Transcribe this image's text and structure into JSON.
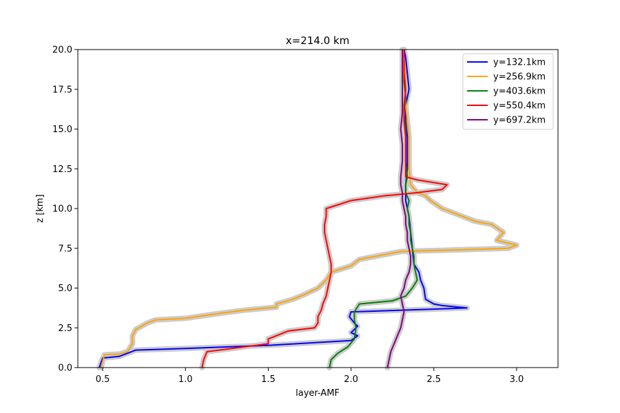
{
  "chart_data": {
    "type": "line",
    "title": "x=214.0 km",
    "xlabel": "layer-AMF",
    "ylabel": "z [km]",
    "xlim": [
      0.35,
      3.25
    ],
    "ylim": [
      0,
      20
    ],
    "xticks": [
      0.5,
      1.0,
      1.5,
      2.0,
      2.5,
      3.0
    ],
    "xtick_labels": [
      "0.5",
      "1.0",
      "1.5",
      "2.0",
      "2.5",
      "3.0"
    ],
    "yticks": [
      0,
      2.5,
      5,
      7.5,
      10,
      12.5,
      15,
      17.5,
      20
    ],
    "ytick_labels": [
      "0.0",
      "2.5",
      "5.0",
      "7.5",
      "10.0",
      "12.5",
      "15.0",
      "17.5",
      "20.0"
    ],
    "grid": false,
    "legend_position": "top-right",
    "uncertainty_band_color": "#cccccc",
    "series": [
      {
        "name": "y=132.1km",
        "color": "#0000ff",
        "points": [
          [
            0.48,
            0
          ],
          [
            0.49,
            0.3
          ],
          [
            0.5,
            0.6
          ],
          [
            0.6,
            0.7
          ],
          [
            0.65,
            0.9
          ],
          [
            0.7,
            1.1
          ],
          [
            1.0,
            1.2
          ],
          [
            1.5,
            1.4
          ],
          [
            2.0,
            1.7
          ],
          [
            2.04,
            2.0
          ],
          [
            2.0,
            2.2
          ],
          [
            2.04,
            2.6
          ],
          [
            2.02,
            2.8
          ],
          [
            1.99,
            3.2
          ],
          [
            2.0,
            3.5
          ],
          [
            2.7,
            3.75
          ],
          [
            2.55,
            3.9
          ],
          [
            2.5,
            4.0
          ],
          [
            2.45,
            4.3
          ],
          [
            2.44,
            5.0
          ],
          [
            2.42,
            5.5
          ],
          [
            2.41,
            6.0
          ],
          [
            2.38,
            6.5
          ],
          [
            2.37,
            7.5
          ],
          [
            2.36,
            8.5
          ],
          [
            2.35,
            9.5
          ],
          [
            2.33,
            10.5
          ],
          [
            2.33,
            11.5
          ],
          [
            2.34,
            12.5
          ],
          [
            2.34,
            13.5
          ],
          [
            2.34,
            14.5
          ],
          [
            2.33,
            15.5
          ],
          [
            2.33,
            16.5
          ],
          [
            2.35,
            17.5
          ],
          [
            2.34,
            18.5
          ],
          [
            2.33,
            19.5
          ],
          [
            2.32,
            20
          ]
        ]
      },
      {
        "name": "y=256.9km",
        "color": "#ffa500",
        "points": [
          [
            0.49,
            0
          ],
          [
            0.5,
            0.4
          ],
          [
            0.51,
            0.8
          ],
          [
            0.6,
            0.85
          ],
          [
            0.65,
            1.0
          ],
          [
            0.68,
            1.5
          ],
          [
            0.68,
            2.0
          ],
          [
            0.7,
            2.4
          ],
          [
            0.77,
            2.8
          ],
          [
            0.82,
            3.0
          ],
          [
            1.0,
            3.1
          ],
          [
            1.2,
            3.4
          ],
          [
            1.35,
            3.6
          ],
          [
            1.55,
            3.8
          ],
          [
            1.55,
            4.0
          ],
          [
            1.65,
            4.3
          ],
          [
            1.72,
            4.6
          ],
          [
            1.8,
            5.0
          ],
          [
            1.85,
            5.5
          ],
          [
            1.88,
            6.0
          ],
          [
            2.0,
            6.4
          ],
          [
            2.05,
            6.8
          ],
          [
            2.15,
            7.0
          ],
          [
            2.3,
            7.3
          ],
          [
            2.95,
            7.5
          ],
          [
            3.0,
            7.7
          ],
          [
            2.88,
            8.0
          ],
          [
            2.92,
            8.5
          ],
          [
            2.85,
            9.0
          ],
          [
            2.75,
            9.2
          ],
          [
            2.65,
            9.6
          ],
          [
            2.55,
            10.0
          ],
          [
            2.48,
            10.5
          ],
          [
            2.45,
            10.8
          ],
          [
            2.4,
            11.0
          ],
          [
            2.36,
            11.5
          ],
          [
            2.35,
            12.5
          ],
          [
            2.35,
            13.5
          ],
          [
            2.35,
            14.5
          ],
          [
            2.34,
            15.5
          ],
          [
            2.33,
            16.5
          ],
          [
            2.33,
            17.5
          ],
          [
            2.33,
            18.5
          ],
          [
            2.32,
            19.5
          ],
          [
            2.32,
            20
          ]
        ]
      },
      {
        "name": "y=403.6km",
        "color": "#008000",
        "points": [
          [
            1.87,
            0
          ],
          [
            1.88,
            0.5
          ],
          [
            1.92,
            0.9
          ],
          [
            1.98,
            1.3
          ],
          [
            2.02,
            1.8
          ],
          [
            2.03,
            2.5
          ],
          [
            2.02,
            3.0
          ],
          [
            2.02,
            3.5
          ],
          [
            2.05,
            4.0
          ],
          [
            2.25,
            4.2
          ],
          [
            2.33,
            4.5
          ],
          [
            2.37,
            5.0
          ],
          [
            2.4,
            5.5
          ],
          [
            2.39,
            6.0
          ],
          [
            2.38,
            6.5
          ],
          [
            2.38,
            7.0
          ],
          [
            2.37,
            7.5
          ],
          [
            2.36,
            8.0
          ],
          [
            2.36,
            8.5
          ],
          [
            2.35,
            9.0
          ],
          [
            2.35,
            9.5
          ],
          [
            2.34,
            10.0
          ],
          [
            2.35,
            10.5
          ],
          [
            2.33,
            11.0
          ],
          [
            2.33,
            11.5
          ],
          [
            2.34,
            12.0
          ],
          [
            2.33,
            13.0
          ],
          [
            2.33,
            14.0
          ],
          [
            2.33,
            15.0
          ],
          [
            2.32,
            16.0
          ],
          [
            2.33,
            17.0
          ],
          [
            2.32,
            18.0
          ],
          [
            2.32,
            19.0
          ],
          [
            2.32,
            20
          ]
        ]
      },
      {
        "name": "y=550.4km",
        "color": "#ff0000",
        "points": [
          [
            1.1,
            0
          ],
          [
            1.11,
            0.5
          ],
          [
            1.13,
            1.0
          ],
          [
            1.5,
            1.5
          ],
          [
            1.5,
            1.8
          ],
          [
            1.62,
            2.3
          ],
          [
            1.78,
            2.5
          ],
          [
            1.8,
            2.8
          ],
          [
            1.8,
            3.2
          ],
          [
            1.82,
            3.6
          ],
          [
            1.83,
            4.0
          ],
          [
            1.85,
            4.5
          ],
          [
            1.86,
            5.0
          ],
          [
            1.87,
            5.5
          ],
          [
            1.88,
            6.0
          ],
          [
            1.88,
            6.5
          ],
          [
            1.87,
            7.0
          ],
          [
            1.86,
            7.5
          ],
          [
            1.85,
            8.0
          ],
          [
            1.84,
            8.5
          ],
          [
            1.84,
            9.0
          ],
          [
            1.85,
            9.5
          ],
          [
            1.85,
            10.0
          ],
          [
            2.0,
            10.5
          ],
          [
            2.2,
            10.8
          ],
          [
            2.4,
            11.0
          ],
          [
            2.55,
            11.2
          ],
          [
            2.58,
            11.5
          ],
          [
            2.4,
            11.8
          ],
          [
            2.33,
            12.0
          ],
          [
            2.33,
            12.5
          ],
          [
            2.33,
            13.5
          ],
          [
            2.33,
            14.5
          ],
          [
            2.32,
            15.5
          ],
          [
            2.32,
            16.5
          ],
          [
            2.33,
            17.5
          ],
          [
            2.32,
            18.5
          ],
          [
            2.32,
            19.5
          ],
          [
            2.32,
            20
          ]
        ]
      },
      {
        "name": "y=697.2km",
        "color": "#800080",
        "points": [
          [
            2.22,
            0
          ],
          [
            2.23,
            0.5
          ],
          [
            2.24,
            1.0
          ],
          [
            2.26,
            1.5
          ],
          [
            2.28,
            2.0
          ],
          [
            2.3,
            2.5
          ],
          [
            2.31,
            3.0
          ],
          [
            2.32,
            3.5
          ],
          [
            2.31,
            4.0
          ],
          [
            2.3,
            4.5
          ],
          [
            2.32,
            5.0
          ],
          [
            2.33,
            5.5
          ],
          [
            2.35,
            6.0
          ],
          [
            2.36,
            6.5
          ],
          [
            2.36,
            7.0
          ],
          [
            2.35,
            7.5
          ],
          [
            2.34,
            8.0
          ],
          [
            2.34,
            8.5
          ],
          [
            2.33,
            9.0
          ],
          [
            2.33,
            9.5
          ],
          [
            2.32,
            10.0
          ],
          [
            2.31,
            10.5
          ],
          [
            2.31,
            11.0
          ],
          [
            2.3,
            11.5
          ],
          [
            2.3,
            12.0
          ],
          [
            2.31,
            13.0
          ],
          [
            2.31,
            14.0
          ],
          [
            2.3,
            15.0
          ],
          [
            2.31,
            16.0
          ],
          [
            2.31,
            17.0
          ],
          [
            2.31,
            18.0
          ],
          [
            2.31,
            19.0
          ],
          [
            2.31,
            20
          ]
        ]
      }
    ]
  }
}
